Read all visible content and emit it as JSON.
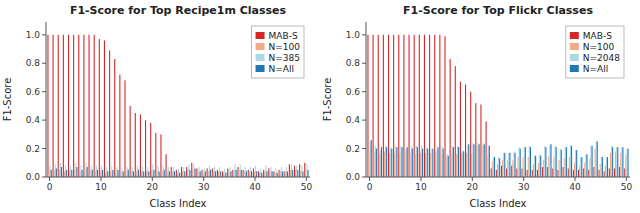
{
  "chart_data": [
    {
      "type": "bar",
      "title": "F1-Score for Top Recipe1m Classes",
      "xlabel": "Class Index",
      "ylabel": "F1-Score",
      "x": [
        0,
        1,
        2,
        3,
        4,
        5,
        6,
        7,
        8,
        9,
        10,
        11,
        12,
        13,
        14,
        15,
        16,
        17,
        18,
        19,
        20,
        21,
        22,
        23,
        24,
        25,
        26,
        27,
        28,
        29,
        30,
        31,
        32,
        33,
        34,
        35,
        36,
        37,
        38,
        39,
        40,
        41,
        42,
        43,
        44,
        45,
        46,
        47,
        48,
        49,
        50
      ],
      "xlim": [
        -0.7,
        50.7
      ],
      "xticks": [
        0,
        10,
        20,
        30,
        40,
        50
      ],
      "ylim": [
        0,
        1.09
      ],
      "yticks": [
        {
          "value": 0,
          "label": "0.0"
        },
        0.2,
        0.4,
        0.6,
        0.8,
        {
          "value": 1,
          "label": "1.0"
        }
      ],
      "legend": "upper right",
      "series": [
        {
          "name": "MAB-S",
          "color": "#d62728",
          "values": [
            1.0,
            1.0,
            1.0,
            1.0,
            1.0,
            1.0,
            1.0,
            1.0,
            1.0,
            1.0,
            0.97,
            0.96,
            0.89,
            0.83,
            0.72,
            0.68,
            0.5,
            0.45,
            0.44,
            0.4,
            0.38,
            0.31,
            0.3,
            0.16,
            0.07,
            0.05,
            0.07,
            0.07,
            0.1,
            0.06,
            0.05,
            0.06,
            0.06,
            0.05,
            0.04,
            0.06,
            0.05,
            0.07,
            0.05,
            0.05,
            0.06,
            0.04,
            0.05,
            0.06,
            0.04,
            0.05,
            0.04,
            0.09,
            0.08,
            0.09,
            0.1
          ]
        },
        {
          "name": "N=100",
          "color": "#f5a986",
          "values": [
            0.04,
            0.05,
            0.05,
            0.04,
            0.04,
            0.05,
            0.04,
            0.05,
            0.04,
            0.04,
            0.04,
            0.03,
            0.04,
            0.04,
            0.03,
            0.04,
            0.04,
            0.04,
            0.04,
            0.04,
            0.05,
            0.04,
            0.04,
            0.04,
            0.04,
            0.03,
            0.04,
            0.05,
            0.05,
            0.04,
            0.03,
            0.04,
            0.04,
            0.04,
            0.03,
            0.04,
            0.05,
            0.05,
            0.04,
            0.04,
            0.04,
            0.03,
            0.04,
            0.04,
            0.03,
            0.04,
            0.04,
            0.05,
            0.05,
            0.04,
            0.05
          ]
        },
        {
          "name": "N=385",
          "color": "#add8e6",
          "values": [
            0.08,
            0.09,
            0.1,
            0.08,
            0.08,
            0.1,
            0.08,
            0.1,
            0.08,
            0.08,
            0.08,
            0.07,
            0.08,
            0.07,
            0.06,
            0.07,
            0.07,
            0.08,
            0.07,
            0.07,
            0.09,
            0.08,
            0.08,
            0.07,
            0.07,
            0.06,
            0.07,
            0.09,
            0.09,
            0.07,
            0.06,
            0.08,
            0.07,
            0.07,
            0.06,
            0.07,
            0.09,
            0.09,
            0.07,
            0.07,
            0.08,
            0.06,
            0.08,
            0.07,
            0.06,
            0.07,
            0.07,
            0.09,
            0.08,
            0.08,
            0.09
          ]
        },
        {
          "name": "N=All",
          "color": "#1f77b4",
          "values": [
            0.05,
            0.06,
            0.07,
            0.05,
            0.05,
            0.07,
            0.05,
            0.07,
            0.05,
            0.05,
            0.05,
            0.04,
            0.05,
            0.05,
            0.04,
            0.05,
            0.04,
            0.05,
            0.04,
            0.04,
            0.05,
            0.04,
            0.05,
            0.04,
            0.04,
            0.03,
            0.04,
            0.05,
            0.06,
            0.04,
            0.04,
            0.05,
            0.04,
            0.04,
            0.03,
            0.04,
            0.05,
            0.05,
            0.04,
            0.04,
            0.04,
            0.03,
            0.04,
            0.04,
            0.03,
            0.04,
            0.04,
            0.05,
            0.05,
            0.04,
            0.05
          ]
        }
      ]
    },
    {
      "type": "bar",
      "title": "F1-Score for Top Flickr Classes",
      "xlabel": "Class Index",
      "ylabel": "F1-Score",
      "x": [
        0,
        1,
        2,
        3,
        4,
        5,
        6,
        7,
        8,
        9,
        10,
        11,
        12,
        13,
        14,
        15,
        16,
        17,
        18,
        19,
        20,
        21,
        22,
        23,
        24,
        25,
        26,
        27,
        28,
        29,
        30,
        31,
        32,
        33,
        34,
        35,
        36,
        37,
        38,
        39,
        40,
        41,
        42,
        43,
        44,
        45,
        46,
        47,
        48,
        49,
        50
      ],
      "xlim": [
        -0.7,
        50.7
      ],
      "xticks": [
        0,
        10,
        20,
        30,
        40,
        50
      ],
      "ylim": [
        0,
        1.09
      ],
      "yticks": [
        {
          "value": 0,
          "label": "0.0"
        },
        0.2,
        0.4,
        0.6,
        0.8,
        {
          "value": 1,
          "label": "1.0"
        }
      ],
      "legend": "upper right",
      "series": [
        {
          "name": "MAB-S",
          "color": "#d62728",
          "values": [
            1.0,
            1.0,
            1.0,
            1.0,
            1.0,
            1.0,
            1.0,
            1.0,
            1.0,
            1.0,
            1.0,
            1.0,
            1.0,
            1.0,
            1.0,
            0.99,
            0.83,
            0.78,
            0.67,
            0.65,
            0.6,
            0.52,
            0.51,
            0.39,
            0.06,
            0.05,
            0.08,
            0.06,
            0.08,
            0.06,
            0.06,
            0.05,
            0.05,
            0.05,
            0.07,
            0.07,
            0.06,
            0.05,
            0.07,
            0.06,
            0.05,
            0.05,
            0.06,
            0.05,
            0.07,
            0.05,
            0.04,
            0.06,
            0.06,
            0.07,
            0.06
          ]
        },
        {
          "name": "N=100",
          "color": "#f5a986",
          "values": [
            0.18,
            0.17,
            0.17,
            0.18,
            0.17,
            0.17,
            0.17,
            0.18,
            0.17,
            0.16,
            0.17,
            0.17,
            0.17,
            0.17,
            0.16,
            0.15,
            0.16,
            0.16,
            0.17,
            0.17,
            0.16,
            0.22,
            0.22,
            0.15,
            0.11,
            0.09,
            0.12,
            0.12,
            0.12,
            0.14,
            0.14,
            0.14,
            0.09,
            0.1,
            0.12,
            0.15,
            0.14,
            0.12,
            0.13,
            0.14,
            0.1,
            0.08,
            0.1,
            0.13,
            0.2,
            0.09,
            0.08,
            0.17,
            0.18,
            0.17,
            0.16
          ]
        },
        {
          "name": "N=2048",
          "color": "#add8e6",
          "values": [
            0.25,
            0.22,
            0.19,
            0.22,
            0.21,
            0.22,
            0.22,
            0.2,
            0.22,
            0.22,
            0.22,
            0.21,
            0.2,
            0.19,
            0.22,
            0.16,
            0.22,
            0.22,
            0.19,
            0.23,
            0.24,
            0.24,
            0.24,
            0.22,
            0.14,
            0.14,
            0.17,
            0.17,
            0.18,
            0.21,
            0.21,
            0.22,
            0.15,
            0.16,
            0.22,
            0.23,
            0.22,
            0.2,
            0.21,
            0.22,
            0.19,
            0.14,
            0.16,
            0.22,
            0.25,
            0.14,
            0.14,
            0.22,
            0.21,
            0.21,
            0.2
          ]
        },
        {
          "name": "N=All",
          "color": "#1f77b4",
          "values": [
            0.26,
            0.2,
            0.21,
            0.21,
            0.2,
            0.21,
            0.21,
            0.21,
            0.2,
            0.21,
            0.2,
            0.2,
            0.2,
            0.21,
            0.2,
            0.15,
            0.21,
            0.21,
            0.18,
            0.23,
            0.23,
            0.23,
            0.23,
            0.22,
            0.14,
            0.13,
            0.17,
            0.17,
            0.17,
            0.2,
            0.21,
            0.21,
            0.15,
            0.15,
            0.21,
            0.23,
            0.21,
            0.19,
            0.21,
            0.22,
            0.19,
            0.14,
            0.16,
            0.22,
            0.25,
            0.14,
            0.14,
            0.21,
            0.21,
            0.21,
            0.2
          ]
        }
      ]
    }
  ]
}
